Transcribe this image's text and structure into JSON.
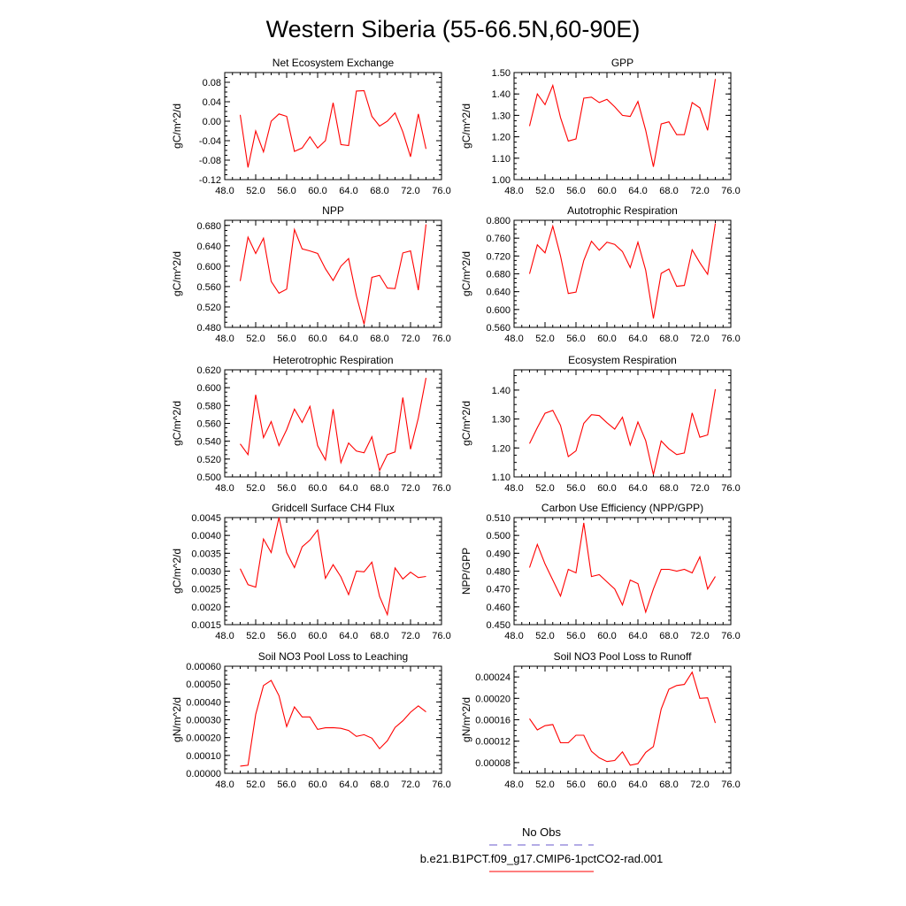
{
  "figure": {
    "title": "Western Siberia (55-66.5N,60-90E)",
    "line_color": "#ff0000",
    "obs_color": "#6a5acd"
  },
  "legend": {
    "entries": [
      {
        "label": "No Obs",
        "style": "dashed",
        "color": "#6a5acd"
      },
      {
        "label": "b.e21.B1PCT.f09_g17.CMIP6-1pctCO2-rad.001",
        "style": "solid",
        "color": "#ff0000"
      }
    ]
  },
  "chart_data": [
    {
      "type": "line",
      "title": "Net Ecosystem Exchange",
      "ylabel": "gC/m^2/d",
      "xlim": [
        48,
        76
      ],
      "ylim": [
        -0.12,
        0.1
      ],
      "xticks": [
        "48.0",
        "52.0",
        "56.0",
        "60.0",
        "64.0",
        "68.0",
        "72.0",
        "76.0"
      ],
      "yticks": [
        {
          "v": -0.12,
          "t": "-0.12"
        },
        {
          "v": -0.08,
          "t": "-0.08"
        },
        {
          "v": -0.04,
          "t": "-0.04"
        },
        {
          "v": 0.0,
          "t": "0.00"
        },
        {
          "v": 0.04,
          "t": "0.04"
        },
        {
          "v": 0.08,
          "t": "0.08"
        }
      ],
      "x": [
        50,
        51,
        52,
        53,
        54,
        55,
        56,
        57,
        58,
        59,
        60,
        61,
        62,
        63,
        64,
        65,
        66,
        67,
        68,
        69,
        70,
        71,
        72,
        73,
        74
      ],
      "y": [
        0.013,
        -0.095,
        -0.02,
        -0.063,
        0.0,
        0.015,
        0.01,
        -0.062,
        -0.055,
        -0.032,
        -0.055,
        -0.04,
        0.038,
        -0.048,
        -0.05,
        0.062,
        0.063,
        0.01,
        -0.01,
        0.0,
        0.017,
        -0.022,
        -0.073,
        0.015,
        -0.057
      ]
    },
    {
      "type": "line",
      "title": "GPP",
      "ylabel": "gC/m^2/d",
      "xlim": [
        48,
        76
      ],
      "ylim": [
        1.0,
        1.5
      ],
      "xticks": [
        "48.0",
        "52.0",
        "56.0",
        "60.0",
        "64.0",
        "68.0",
        "72.0",
        "76.0"
      ],
      "yticks": [
        {
          "v": 1.0,
          "t": "1.00"
        },
        {
          "v": 1.1,
          "t": "1.10"
        },
        {
          "v": 1.2,
          "t": "1.20"
        },
        {
          "v": 1.3,
          "t": "1.30"
        },
        {
          "v": 1.4,
          "t": "1.40"
        },
        {
          "v": 1.5,
          "t": "1.50"
        }
      ],
      "x": [
        50,
        51,
        52,
        53,
        54,
        55,
        56,
        57,
        58,
        59,
        60,
        61,
        62,
        63,
        64,
        65,
        66,
        67,
        68,
        69,
        70,
        71,
        72,
        73,
        74
      ],
      "y": [
        1.25,
        1.4,
        1.35,
        1.44,
        1.29,
        1.18,
        1.19,
        1.38,
        1.385,
        1.36,
        1.375,
        1.34,
        1.3,
        1.295,
        1.365,
        1.23,
        1.06,
        1.26,
        1.27,
        1.21,
        1.21,
        1.36,
        1.335,
        1.23,
        1.47
      ]
    },
    {
      "type": "line",
      "title": "NPP",
      "ylabel": "gC/m^2/d",
      "xlim": [
        48,
        76
      ],
      "ylim": [
        0.48,
        0.69
      ],
      "xticks": [
        "48.0",
        "52.0",
        "56.0",
        "60.0",
        "64.0",
        "68.0",
        "72.0",
        "76.0"
      ],
      "yticks": [
        {
          "v": 0.48,
          "t": "0.480"
        },
        {
          "v": 0.52,
          "t": "0.520"
        },
        {
          "v": 0.56,
          "t": "0.560"
        },
        {
          "v": 0.6,
          "t": "0.600"
        },
        {
          "v": 0.64,
          "t": "0.640"
        },
        {
          "v": 0.68,
          "t": "0.680"
        }
      ],
      "x": [
        50,
        51,
        52,
        53,
        54,
        55,
        56,
        57,
        58,
        59,
        60,
        61,
        62,
        63,
        64,
        65,
        66,
        67,
        68,
        69,
        70,
        71,
        72,
        73,
        74
      ],
      "y": [
        0.571,
        0.657,
        0.625,
        0.655,
        0.57,
        0.547,
        0.555,
        0.672,
        0.634,
        0.63,
        0.625,
        0.595,
        0.572,
        0.6,
        0.615,
        0.542,
        0.486,
        0.578,
        0.582,
        0.557,
        0.556,
        0.626,
        0.63,
        0.553,
        0.682
      ]
    },
    {
      "type": "line",
      "title": "Autotrophic Respiration",
      "ylabel": "gC/m^2/d",
      "xlim": [
        48,
        76
      ],
      "ylim": [
        0.56,
        0.8
      ],
      "xticks": [
        "48.0",
        "52.0",
        "56.0",
        "60.0",
        "64.0",
        "68.0",
        "72.0",
        "76.0"
      ],
      "yticks": [
        {
          "v": 0.56,
          "t": "0.560"
        },
        {
          "v": 0.6,
          "t": "0.600"
        },
        {
          "v": 0.64,
          "t": "0.640"
        },
        {
          "v": 0.68,
          "t": "0.680"
        },
        {
          "v": 0.72,
          "t": "0.720"
        },
        {
          "v": 0.76,
          "t": "0.760"
        },
        {
          "v": 0.8,
          "t": "0.800"
        }
      ],
      "x": [
        50,
        51,
        52,
        53,
        54,
        55,
        56,
        57,
        58,
        59,
        60,
        61,
        62,
        63,
        64,
        65,
        66,
        67,
        68,
        69,
        70,
        71,
        72,
        73,
        74
      ],
      "y": [
        0.68,
        0.745,
        0.727,
        0.787,
        0.72,
        0.636,
        0.639,
        0.71,
        0.753,
        0.733,
        0.751,
        0.746,
        0.73,
        0.694,
        0.751,
        0.688,
        0.58,
        0.681,
        0.691,
        0.652,
        0.654,
        0.734,
        0.705,
        0.679,
        0.793
      ]
    },
    {
      "type": "line",
      "title": "Heterotrophic Respiration",
      "ylabel": "gC/m^2/d",
      "xlim": [
        48,
        76
      ],
      "ylim": [
        0.5,
        0.62
      ],
      "xticks": [
        "48.0",
        "52.0",
        "56.0",
        "60.0",
        "64.0",
        "68.0",
        "72.0",
        "76.0"
      ],
      "yticks": [
        {
          "v": 0.5,
          "t": "0.500"
        },
        {
          "v": 0.52,
          "t": "0.520"
        },
        {
          "v": 0.54,
          "t": "0.540"
        },
        {
          "v": 0.56,
          "t": "0.560"
        },
        {
          "v": 0.58,
          "t": "0.580"
        },
        {
          "v": 0.6,
          "t": "0.600"
        },
        {
          "v": 0.62,
          "t": "0.620"
        }
      ],
      "x": [
        50,
        51,
        52,
        53,
        54,
        55,
        56,
        57,
        58,
        59,
        60,
        61,
        62,
        63,
        64,
        65,
        66,
        67,
        68,
        69,
        70,
        71,
        72,
        73,
        74
      ],
      "y": [
        0.537,
        0.525,
        0.592,
        0.544,
        0.562,
        0.535,
        0.553,
        0.576,
        0.561,
        0.579,
        0.535,
        0.519,
        0.576,
        0.516,
        0.538,
        0.529,
        0.527,
        0.545,
        0.507,
        0.525,
        0.528,
        0.589,
        0.531,
        0.566,
        0.611
      ]
    },
    {
      "type": "line",
      "title": "Ecosystem Respiration",
      "ylabel": "gC/m^2/d",
      "xlim": [
        48,
        76
      ],
      "ylim": [
        1.1,
        1.47
      ],
      "xticks": [
        "48.0",
        "52.0",
        "56.0",
        "60.0",
        "64.0",
        "68.0",
        "72.0",
        "76.0"
      ],
      "yticks": [
        {
          "v": 1.1,
          "t": "1.10"
        },
        {
          "v": 1.2,
          "t": "1.20"
        },
        {
          "v": 1.3,
          "t": "1.30"
        },
        {
          "v": 1.4,
          "t": "1.40"
        }
      ],
      "x": [
        50,
        51,
        52,
        53,
        54,
        55,
        56,
        57,
        58,
        59,
        60,
        61,
        62,
        63,
        64,
        65,
        66,
        67,
        68,
        69,
        70,
        71,
        72,
        73,
        74
      ],
      "y": [
        1.215,
        1.27,
        1.32,
        1.33,
        1.278,
        1.17,
        1.19,
        1.285,
        1.315,
        1.312,
        1.287,
        1.265,
        1.306,
        1.21,
        1.29,
        1.225,
        1.108,
        1.224,
        1.197,
        1.177,
        1.183,
        1.321,
        1.237,
        1.245,
        1.403
      ]
    },
    {
      "type": "line",
      "title": "Gridcell Surface CH4 Flux",
      "ylabel": "gC/m^2/d",
      "xlim": [
        48,
        76
      ],
      "ylim": [
        0.0015,
        0.0045
      ],
      "xticks": [
        "48.0",
        "52.0",
        "56.0",
        "60.0",
        "64.0",
        "68.0",
        "72.0",
        "76.0"
      ],
      "yticks": [
        {
          "v": 0.0015,
          "t": "0.0015"
        },
        {
          "v": 0.002,
          "t": "0.0020"
        },
        {
          "v": 0.0025,
          "t": "0.0025"
        },
        {
          "v": 0.003,
          "t": "0.0030"
        },
        {
          "v": 0.0035,
          "t": "0.0035"
        },
        {
          "v": 0.004,
          "t": "0.0040"
        },
        {
          "v": 0.0045,
          "t": "0.0045"
        }
      ],
      "x": [
        50,
        51,
        52,
        53,
        54,
        55,
        56,
        57,
        58,
        59,
        60,
        61,
        62,
        63,
        64,
        65,
        66,
        67,
        68,
        69,
        70,
        71,
        72,
        73,
        74
      ],
      "y": [
        0.00307,
        0.00262,
        0.00255,
        0.0039,
        0.00352,
        0.0045,
        0.00352,
        0.0031,
        0.00368,
        0.00387,
        0.00415,
        0.0028,
        0.00318,
        0.00284,
        0.00234,
        0.003,
        0.00298,
        0.00325,
        0.00229,
        0.00178,
        0.00309,
        0.00278,
        0.00297,
        0.00282,
        0.00285
      ]
    },
    {
      "type": "line",
      "title": "Carbon Use Efficiency (NPP/GPP)",
      "ylabel": "NPP/GPP",
      "xlim": [
        48,
        76
      ],
      "ylim": [
        0.45,
        0.51
      ],
      "xticks": [
        "48.0",
        "52.0",
        "56.0",
        "60.0",
        "64.0",
        "68.0",
        "72.0",
        "76.0"
      ],
      "yticks": [
        {
          "v": 0.45,
          "t": "0.450"
        },
        {
          "v": 0.46,
          "t": "0.460"
        },
        {
          "v": 0.47,
          "t": "0.470"
        },
        {
          "v": 0.48,
          "t": "0.480"
        },
        {
          "v": 0.49,
          "t": "0.490"
        },
        {
          "v": 0.5,
          "t": "0.500"
        },
        {
          "v": 0.51,
          "t": "0.510"
        }
      ],
      "x": [
        50,
        51,
        52,
        53,
        54,
        55,
        56,
        57,
        58,
        59,
        60,
        61,
        62,
        63,
        64,
        65,
        66,
        67,
        68,
        69,
        70,
        71,
        72,
        73,
        74
      ],
      "y": [
        0.482,
        0.495,
        0.484,
        0.475,
        0.466,
        0.481,
        0.479,
        0.507,
        0.477,
        0.478,
        0.474,
        0.47,
        0.461,
        0.475,
        0.473,
        0.457,
        0.47,
        0.481,
        0.481,
        0.48,
        0.481,
        0.479,
        0.488,
        0.47,
        0.477
      ]
    },
    {
      "type": "line",
      "title": "Soil NO3 Pool Loss to Leaching",
      "ylabel": "gN/m^2/d",
      "xlim": [
        48,
        76
      ],
      "ylim": [
        0.0,
        0.0006
      ],
      "xticks": [
        "48.0",
        "52.0",
        "56.0",
        "60.0",
        "64.0",
        "68.0",
        "72.0",
        "76.0"
      ],
      "yticks": [
        {
          "v": 0.0,
          "t": "0.00000"
        },
        {
          "v": 0.0001,
          "t": "0.00010"
        },
        {
          "v": 0.0002,
          "t": "0.00020"
        },
        {
          "v": 0.0003,
          "t": "0.00030"
        },
        {
          "v": 0.0004,
          "t": "0.00040"
        },
        {
          "v": 0.0005,
          "t": "0.00050"
        },
        {
          "v": 0.0006,
          "t": "0.00060"
        }
      ],
      "x": [
        50,
        51,
        52,
        53,
        54,
        55,
        56,
        57,
        58,
        59,
        60,
        61,
        62,
        63,
        64,
        65,
        66,
        67,
        68,
        69,
        70,
        71,
        72,
        73,
        74
      ],
      "y": [
        4e-05,
        4.5e-05,
        0.00033,
        0.000492,
        0.00052,
        0.000435,
        0.000262,
        0.000372,
        0.000316,
        0.000316,
        0.000246,
        0.000255,
        0.000256,
        0.000252,
        0.00024,
        0.000207,
        0.000216,
        0.000197,
        0.000138,
        0.000182,
        0.000257,
        0.000294,
        0.000342,
        0.000378,
        0.000344
      ]
    },
    {
      "type": "line",
      "title": "Soil NO3 Pool Loss to Runoff",
      "ylabel": "gN/m^2/d",
      "xlim": [
        48,
        76
      ],
      "ylim": [
        6e-05,
        0.00026
      ],
      "xticks": [
        "48.0",
        "52.0",
        "56.0",
        "60.0",
        "64.0",
        "68.0",
        "72.0",
        "76.0"
      ],
      "yticks": [
        {
          "v": 8e-05,
          "t": "0.00008"
        },
        {
          "v": 0.00012,
          "t": "0.00012"
        },
        {
          "v": 0.00016,
          "t": "0.00016"
        },
        {
          "v": 0.0002,
          "t": "0.00020"
        },
        {
          "v": 0.00024,
          "t": "0.00024"
        }
      ],
      "x": [
        50,
        51,
        52,
        53,
        54,
        55,
        56,
        57,
        58,
        59,
        60,
        61,
        62,
        63,
        64,
        65,
        66,
        67,
        68,
        69,
        70,
        71,
        72,
        73,
        74
      ],
      "y": [
        0.000162,
        0.000141,
        0.000149,
        0.000151,
        0.000117,
        0.000117,
        0.000131,
        0.000131,
        0.000101,
        8.9e-05,
        8.2e-05,
        8.4e-05,
        0.0001,
        7.5e-05,
        7.8e-05,
        9.9e-05,
        0.00011,
        0.00018,
        0.000217,
        0.000224,
        0.000226,
        0.000249,
        0.0002,
        0.000201,
        0.000154
      ]
    }
  ]
}
